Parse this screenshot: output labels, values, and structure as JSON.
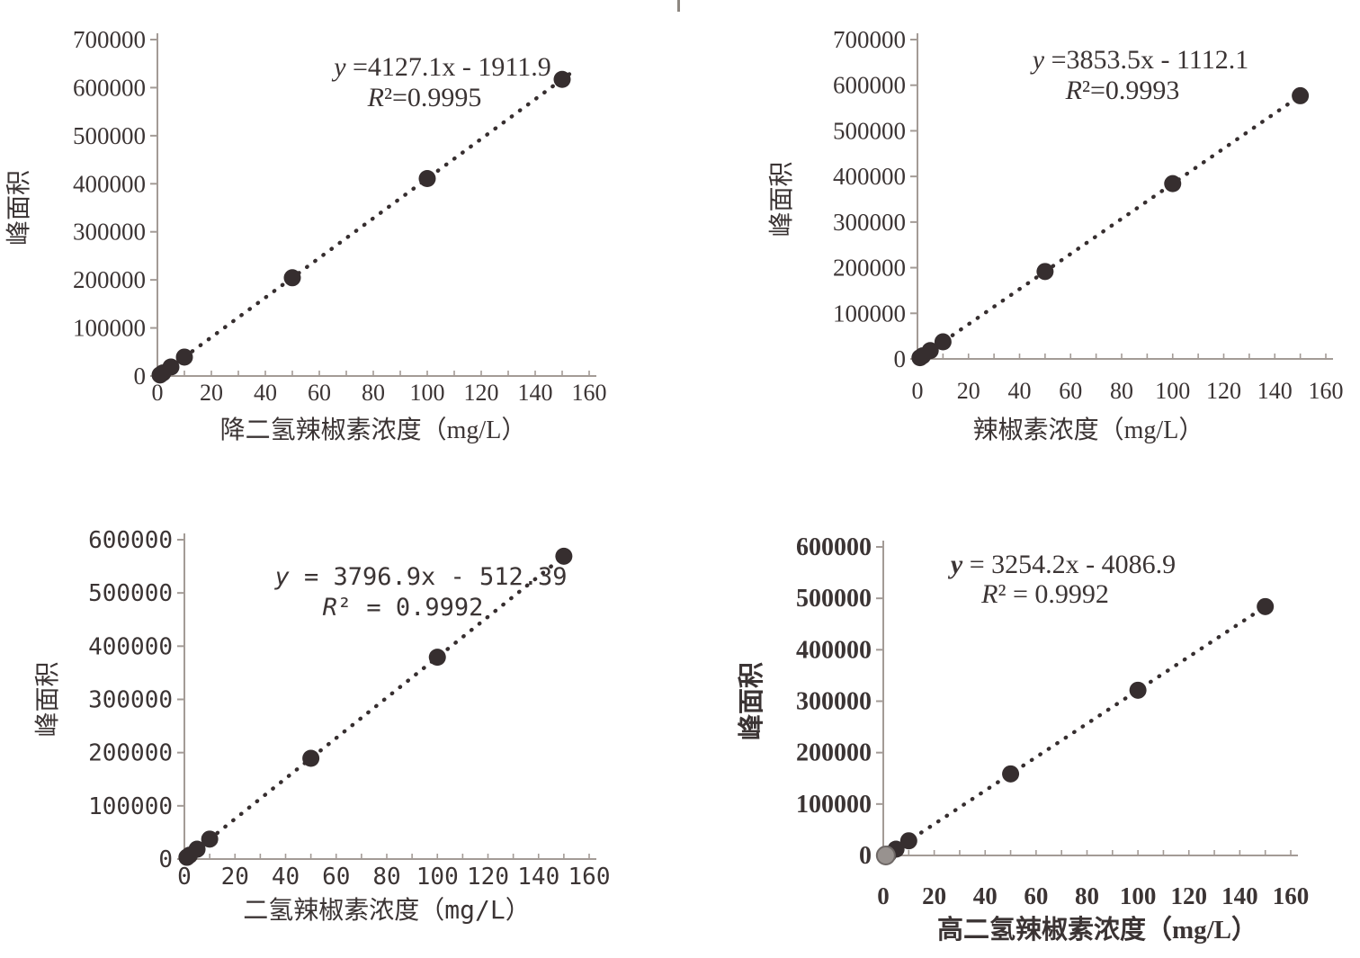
{
  "page": {
    "background": "#ffffff",
    "description_y_axis_label": "峰面积"
  },
  "colors": {
    "point": "#362e2f",
    "trendline": "#362e2f",
    "axis": "#a39b96",
    "text": "#3b3434",
    "gray_point_fill": "#98928f",
    "gray_point_stroke": "#6e6866"
  },
  "chart_data": [
    {
      "type": "scatter",
      "position": "top-left",
      "ylabel": "峰面积",
      "xlabel": "降二氢辣椒素浓度（mg/L）",
      "equation": "y =4127.1x - 1911.9",
      "r2_label": "R²=0.9995",
      "slope": 4127.1,
      "intercept": -1911.9,
      "r_squared": 0.9995,
      "xlim": [
        0,
        160
      ],
      "ylim": [
        0,
        700000
      ],
      "x_tick_step": 20,
      "x_minor_tick_step": 10,
      "y_tick_step": 100000,
      "grid": false,
      "legend": "none",
      "trendline_style": "dotted",
      "points": [
        {
          "x": 1,
          "y": 2200
        },
        {
          "x": 2,
          "y": 6300
        },
        {
          "x": 5,
          "y": 18700
        },
        {
          "x": 10,
          "y": 39400
        },
        {
          "x": 50,
          "y": 204400
        },
        {
          "x": 100,
          "y": 410800
        },
        {
          "x": 150,
          "y": 617200
        }
      ]
    },
    {
      "type": "scatter",
      "position": "top-right",
      "ylabel": "峰面积",
      "xlabel": "辣椒素浓度（mg/L）",
      "equation": "y =3853.5x - 1112.1",
      "r2_label": "R²=0.9993",
      "slope": 3853.5,
      "intercept": -1112.1,
      "r_squared": 0.9993,
      "xlim": [
        0,
        160
      ],
      "ylim": [
        0,
        700000
      ],
      "x_tick_step": 20,
      "x_minor_tick_step": 10,
      "y_tick_step": 100000,
      "grid": false,
      "legend": "none",
      "trendline_style": "dotted",
      "points": [
        {
          "x": 1,
          "y": 2700
        },
        {
          "x": 2,
          "y": 6600
        },
        {
          "x": 5,
          "y": 18200
        },
        {
          "x": 10,
          "y": 37400
        },
        {
          "x": 50,
          "y": 191600
        },
        {
          "x": 100,
          "y": 384200
        },
        {
          "x": 150,
          "y": 576900
        }
      ]
    },
    {
      "type": "scatter",
      "position": "bottom-left",
      "ylabel": "峰面积",
      "xlabel": "二氢辣椒素浓度（mg/L）",
      "equation": "y = 3796.9x - 512.39",
      "r2_label": "R² = 0.9992",
      "slope": 3796.9,
      "intercept": -512.39,
      "r_squared": 0.9992,
      "xlim": [
        0,
        160
      ],
      "ylim": [
        0,
        600000
      ],
      "x_tick_step": 20,
      "x_minor_tick_step": 10,
      "y_tick_step": 100000,
      "grid": false,
      "legend": "none",
      "trendline_style": "dotted",
      "points": [
        {
          "x": 1,
          "y": 3300
        },
        {
          "x": 2,
          "y": 7100
        },
        {
          "x": 5,
          "y": 18500
        },
        {
          "x": 10,
          "y": 37500
        },
        {
          "x": 50,
          "y": 189300
        },
        {
          "x": 100,
          "y": 379200
        },
        {
          "x": 150,
          "y": 569000
        }
      ]
    },
    {
      "type": "scatter",
      "position": "bottom-right",
      "ylabel": "峰面积",
      "xlabel": "高二氢辣椒素浓度（mg/L）",
      "equation": "y = 3254.2x - 4086.9",
      "r2_label": "R² = 0.9992",
      "slope": 3254.2,
      "intercept": -4086.9,
      "r_squared": 0.9992,
      "xlim": [
        0,
        160
      ],
      "ylim": [
        0,
        600000
      ],
      "x_tick_step": 20,
      "x_minor_tick_step": 10,
      "y_tick_step": 100000,
      "grid": false,
      "legend": "none",
      "trendline_style": "dotted",
      "points": [
        {
          "x": 1,
          "y": 0,
          "marker": "gray"
        },
        {
          "x": 2,
          "y": 2400
        },
        {
          "x": 5,
          "y": 12200
        },
        {
          "x": 10,
          "y": 28500
        },
        {
          "x": 50,
          "y": 158600
        },
        {
          "x": 100,
          "y": 321300
        },
        {
          "x": 150,
          "y": 484000
        }
      ]
    }
  ]
}
